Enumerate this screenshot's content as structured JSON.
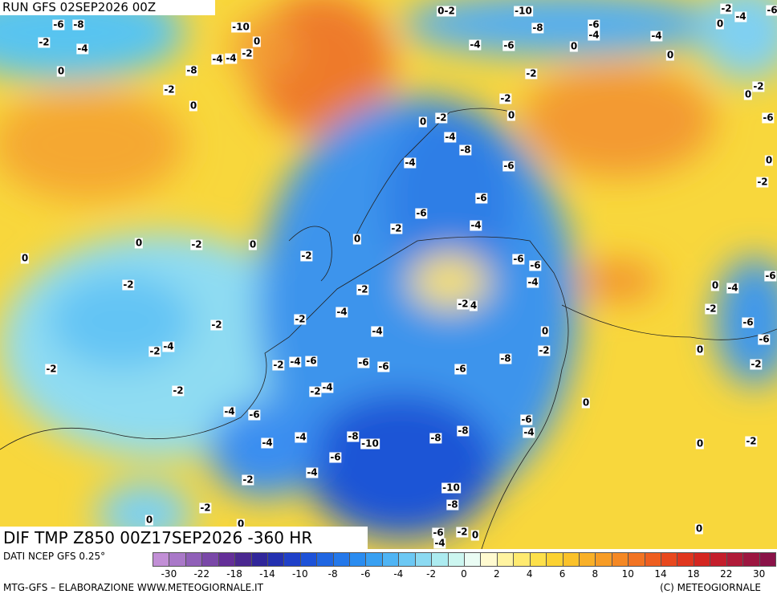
{
  "header": {
    "run": "RUN GFS 02SEP2026 00Z"
  },
  "title": "DIF TMP Z850 00Z17SEP2026 -360 HR",
  "source": "DATI NCEP GFS 0.25°",
  "footer_left": "MTG-GFS – ELABORAZIONE WWW.METEOGIORNALE.IT",
  "footer_right": "(C) METEOGIORNALE",
  "colorbar": {
    "labels": [
      "-30",
      "-22",
      "-18",
      "-14",
      "-10",
      "-8",
      "-6",
      "-4",
      "-2",
      "0",
      "2",
      "4",
      "6",
      "8",
      "10",
      "14",
      "18",
      "22",
      "30"
    ],
    "colors": [
      "#c28fd6",
      "#a978c8",
      "#9060b8",
      "#7a48a8",
      "#642f98",
      "#4a2890",
      "#30269a",
      "#2330b0",
      "#1f40c8",
      "#1d52d8",
      "#1f66e2",
      "#2478ea",
      "#2a8cf0",
      "#38a0f2",
      "#4fb4f4",
      "#6cc8f4",
      "#8cdaf2",
      "#acebf0",
      "#ccf6f0",
      "#eafcf4",
      "#fffad0",
      "#fff3a0",
      "#ffea70",
      "#fde04a",
      "#fcd232",
      "#fbc22a",
      "#f9b028",
      "#f79c26",
      "#f58824",
      "#f27322",
      "#ee5e20",
      "#e8481e",
      "#e0361e",
      "#d42620",
      "#c41e2c",
      "#b01a38",
      "#9c1640",
      "#8a1248"
    ]
  },
  "labels": [
    "-6",
    "-8",
    "-2",
    "-4",
    "0",
    "-10",
    "0",
    "-2",
    "-4",
    "-4",
    "-8",
    "-2",
    "0",
    "0-2",
    "-10",
    "-8",
    "-6",
    "-4",
    "-2",
    "-4",
    "-6",
    "0",
    "-4",
    "0",
    "-4",
    "-6",
    "0",
    "-2",
    "-2",
    "0",
    "-2",
    "0",
    "-2",
    "0",
    "-6",
    "-4",
    "-8",
    "-4",
    "-6",
    "-6",
    "0",
    "-2",
    "-6",
    "-2",
    "-4",
    "0",
    "-2",
    "0",
    "0",
    "0",
    "-2",
    "-6",
    "-6",
    "-4",
    "-2",
    "-2",
    "0",
    "-4",
    "-6",
    "-2",
    "4",
    "-4",
    "-2",
    "-2",
    "-2",
    "-6",
    "-4",
    "0",
    "-6",
    "-2",
    "-4",
    "-2",
    "0",
    "-2",
    "-4",
    "-6",
    "-6",
    "-6",
    "-6",
    "-8",
    "-2",
    "-2",
    "-2",
    "-2",
    "-4",
    "0",
    "-4",
    "-6",
    "-6",
    "-4",
    "-4",
    "-4",
    "-8",
    "-10",
    "-8",
    "-8",
    "0",
    "-2",
    "-6",
    "-4",
    "-2",
    "-10",
    "-8",
    "-2",
    "0",
    "0",
    "-6",
    "-2",
    "0",
    "-4",
    "0"
  ]
}
